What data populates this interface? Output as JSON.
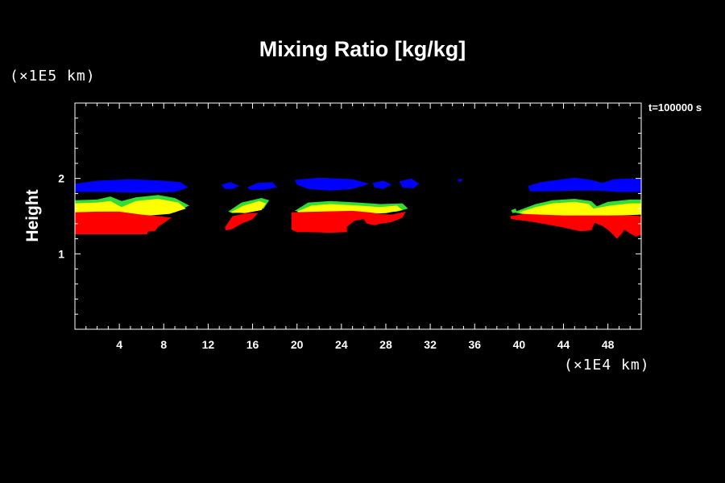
{
  "chart_data": {
    "type": "heatmap",
    "title": "Mixing Ratio [kg/kg]",
    "ylabel": "Height",
    "y_unit_label": "(×1E5 km)",
    "x_unit_label": "(×1E4 km)",
    "time_label": "t=100000 s",
    "xlim": [
      0,
      51
    ],
    "ylim": [
      0,
      3
    ],
    "x_ticks": [
      4,
      8,
      12,
      16,
      20,
      24,
      28,
      32,
      36,
      40,
      44,
      48
    ],
    "y_ticks": [
      1,
      2
    ],
    "colors": {
      "background": "#000000",
      "axes": "#ffffff",
      "level_1": "#ff0000",
      "level_2": "#ffff00",
      "level_3": "#33dd33",
      "level_4": "#0000ff"
    },
    "regions": [
      {
        "level": "level_4",
        "color": "#0000ff",
        "polygon": [
          [
            0,
            1.93
          ],
          [
            2,
            1.97
          ],
          [
            5,
            1.99
          ],
          [
            8,
            1.97
          ],
          [
            9.5,
            1.95
          ],
          [
            10.2,
            1.88
          ],
          [
            9,
            1.82
          ],
          [
            6,
            1.81
          ],
          [
            3,
            1.82
          ],
          [
            0,
            1.82
          ]
        ]
      },
      {
        "level": "level_4",
        "color": "#0000ff",
        "polygon": [
          [
            13.2,
            1.92
          ],
          [
            14,
            1.95
          ],
          [
            14.8,
            1.9
          ],
          [
            14.2,
            1.86
          ],
          [
            13.5,
            1.86
          ]
        ]
      },
      {
        "level": "level_4",
        "color": "#0000ff",
        "polygon": [
          [
            15.5,
            1.88
          ],
          [
            16.5,
            1.94
          ],
          [
            17.8,
            1.95
          ],
          [
            18.2,
            1.88
          ],
          [
            17,
            1.85
          ],
          [
            15.8,
            1.85
          ]
        ]
      },
      {
        "level": "level_4",
        "color": "#0000ff",
        "polygon": [
          [
            19.8,
            1.98
          ],
          [
            22,
            2.01
          ],
          [
            25,
            1.99
          ],
          [
            26.5,
            1.93
          ],
          [
            25,
            1.86
          ],
          [
            23,
            1.84
          ],
          [
            21,
            1.86
          ],
          [
            20,
            1.92
          ]
        ]
      },
      {
        "level": "level_4",
        "color": "#0000ff",
        "polygon": [
          [
            26.8,
            1.94
          ],
          [
            27.8,
            1.97
          ],
          [
            28.5,
            1.92
          ],
          [
            27.8,
            1.86
          ],
          [
            27,
            1.88
          ]
        ]
      },
      {
        "level": "level_4",
        "color": "#0000ff",
        "polygon": [
          [
            29.2,
            1.96
          ],
          [
            30.3,
            2.0
          ],
          [
            31,
            1.93
          ],
          [
            30.5,
            1.87
          ],
          [
            29.5,
            1.88
          ]
        ]
      },
      {
        "level": "level_4",
        "color": "#0000ff",
        "polygon": [
          [
            34.5,
            1.99
          ],
          [
            34.9,
            2.0
          ],
          [
            34.8,
            1.96
          ],
          [
            34.5,
            1.96
          ]
        ]
      },
      {
        "level": "level_4",
        "color": "#0000ff",
        "polygon": [
          [
            40.8,
            1.9
          ],
          [
            42,
            1.95
          ],
          [
            43.5,
            1.98
          ],
          [
            45,
            2.01
          ],
          [
            46.5,
            1.98
          ],
          [
            47.5,
            1.94
          ],
          [
            48.5,
            1.99
          ],
          [
            50,
            2.0
          ],
          [
            51,
            1.99
          ],
          [
            51,
            1.82
          ],
          [
            49,
            1.82
          ],
          [
            47,
            1.84
          ],
          [
            45,
            1.84
          ],
          [
            43,
            1.83
          ],
          [
            41,
            1.83
          ]
        ]
      },
      {
        "level": "level_3",
        "color": "#33dd33",
        "polygon": [
          [
            0,
            1.71
          ],
          [
            2,
            1.72
          ],
          [
            3.2,
            1.76
          ],
          [
            4.2,
            1.7
          ],
          [
            5.5,
            1.75
          ],
          [
            7.5,
            1.78
          ],
          [
            9,
            1.74
          ],
          [
            10.3,
            1.64
          ],
          [
            9,
            1.55
          ],
          [
            7,
            1.52
          ],
          [
            5,
            1.53
          ],
          [
            4,
            1.55
          ],
          [
            3,
            1.55
          ],
          [
            1,
            1.56
          ],
          [
            0,
            1.56
          ]
        ]
      },
      {
        "level": "level_3",
        "color": "#33dd33",
        "polygon": [
          [
            13.8,
            1.56
          ],
          [
            15,
            1.68
          ],
          [
            16.8,
            1.74
          ],
          [
            17.5,
            1.71
          ],
          [
            17,
            1.6
          ],
          [
            15.5,
            1.55
          ],
          [
            14.2,
            1.54
          ]
        ]
      },
      {
        "level": "level_3",
        "color": "#33dd33",
        "polygon": [
          [
            19.8,
            1.57
          ],
          [
            21,
            1.68
          ],
          [
            23,
            1.7
          ],
          [
            25.5,
            1.68
          ],
          [
            27.5,
            1.66
          ],
          [
            29.5,
            1.67
          ],
          [
            30,
            1.6
          ],
          [
            29,
            1.56
          ],
          [
            26,
            1.55
          ],
          [
            22,
            1.55
          ],
          [
            20.5,
            1.55
          ]
        ]
      },
      {
        "level": "level_3",
        "color": "#33dd33",
        "polygon": [
          [
            39.5,
            1.55
          ],
          [
            41.5,
            1.66
          ],
          [
            43,
            1.71
          ],
          [
            45,
            1.73
          ],
          [
            46.5,
            1.7
          ],
          [
            47,
            1.63
          ],
          [
            48,
            1.69
          ],
          [
            50,
            1.72
          ],
          [
            51,
            1.72
          ],
          [
            51,
            1.53
          ],
          [
            49,
            1.52
          ],
          [
            47,
            1.52
          ],
          [
            45,
            1.52
          ],
          [
            42,
            1.52
          ],
          [
            40.5,
            1.52
          ]
        ]
      },
      {
        "level": "level_3",
        "color": "#33dd33",
        "polygon": [
          [
            39.3,
            1.58
          ],
          [
            39.7,
            1.6
          ],
          [
            39.8,
            1.55
          ],
          [
            39.4,
            1.54
          ]
        ]
      },
      {
        "level": "level_2",
        "color": "#ffff00",
        "polygon": [
          [
            0,
            1.67
          ],
          [
            2,
            1.68
          ],
          [
            3.2,
            1.7
          ],
          [
            4.2,
            1.62
          ],
          [
            5.5,
            1.7
          ],
          [
            7.5,
            1.73
          ],
          [
            9.3,
            1.68
          ],
          [
            10,
            1.6
          ],
          [
            8.5,
            1.53
          ],
          [
            6,
            1.5
          ],
          [
            4.5,
            1.52
          ],
          [
            3.5,
            1.53
          ],
          [
            0,
            1.53
          ]
        ]
      },
      {
        "level": "level_2",
        "color": "#ffff00",
        "polygon": [
          [
            14,
            1.55
          ],
          [
            15.2,
            1.64
          ],
          [
            16.6,
            1.7
          ],
          [
            17.2,
            1.67
          ],
          [
            16.8,
            1.58
          ],
          [
            15.3,
            1.54
          ]
        ]
      },
      {
        "level": "level_2",
        "color": "#ffff00",
        "polygon": [
          [
            20,
            1.56
          ],
          [
            21.3,
            1.64
          ],
          [
            23,
            1.66
          ],
          [
            25.5,
            1.64
          ],
          [
            27.5,
            1.62
          ],
          [
            29,
            1.64
          ],
          [
            29.5,
            1.58
          ],
          [
            28,
            1.54
          ],
          [
            26,
            1.53
          ],
          [
            22,
            1.53
          ],
          [
            20.5,
            1.53
          ]
        ]
      },
      {
        "level": "level_2",
        "color": "#ffff00",
        "polygon": [
          [
            40,
            1.55
          ],
          [
            41.5,
            1.62
          ],
          [
            43,
            1.67
          ],
          [
            45,
            1.69
          ],
          [
            46.3,
            1.66
          ],
          [
            46.7,
            1.6
          ],
          [
            48.2,
            1.64
          ],
          [
            50,
            1.67
          ],
          [
            51,
            1.67
          ],
          [
            51,
            1.52
          ],
          [
            49,
            1.51
          ],
          [
            47,
            1.5
          ],
          [
            44,
            1.5
          ],
          [
            41,
            1.51
          ]
        ]
      },
      {
        "level": "level_1",
        "color": "#ff0000",
        "polygon": [
          [
            0,
            1.55
          ],
          [
            2,
            1.56
          ],
          [
            4,
            1.56
          ],
          [
            6,
            1.52
          ],
          [
            7.5,
            1.5
          ],
          [
            8.7,
            1.48
          ],
          [
            8.2,
            1.43
          ],
          [
            7.5,
            1.36
          ],
          [
            7.2,
            1.3
          ],
          [
            6.6,
            1.3
          ],
          [
            6.5,
            1.26
          ],
          [
            0,
            1.26
          ]
        ]
      },
      {
        "level": "level_1",
        "color": "#ff0000",
        "polygon": [
          [
            13.5,
            1.35
          ],
          [
            14.2,
            1.5
          ],
          [
            15.5,
            1.54
          ],
          [
            16.5,
            1.54
          ],
          [
            16,
            1.46
          ],
          [
            15,
            1.4
          ],
          [
            14.2,
            1.33
          ],
          [
            13.6,
            1.31
          ]
        ]
      },
      {
        "level": "level_1",
        "color": "#ff0000",
        "polygon": [
          [
            19.5,
            1.55
          ],
          [
            22,
            1.56
          ],
          [
            25,
            1.57
          ],
          [
            26.5,
            1.55
          ],
          [
            27.5,
            1.53
          ],
          [
            28.5,
            1.52
          ],
          [
            29.8,
            1.56
          ],
          [
            29.5,
            1.48
          ],
          [
            28.5,
            1.42
          ],
          [
            27.5,
            1.4
          ],
          [
            27,
            1.38
          ],
          [
            26.3,
            1.4
          ],
          [
            26,
            1.46
          ],
          [
            25.2,
            1.44
          ],
          [
            24.5,
            1.36
          ],
          [
            24.5,
            1.29
          ],
          [
            23,
            1.28
          ],
          [
            21,
            1.29
          ],
          [
            20,
            1.29
          ],
          [
            19.5,
            1.32
          ]
        ]
      },
      {
        "level": "level_1",
        "color": "#ff0000",
        "polygon": [
          [
            39.2,
            1.5
          ],
          [
            40.5,
            1.53
          ],
          [
            42,
            1.52
          ],
          [
            44,
            1.51
          ],
          [
            46,
            1.51
          ],
          [
            48,
            1.51
          ],
          [
            50,
            1.51
          ],
          [
            51,
            1.5
          ],
          [
            51,
            1.25
          ],
          [
            50.5,
            1.23
          ],
          [
            50,
            1.27
          ],
          [
            49.5,
            1.32
          ],
          [
            49.2,
            1.26
          ],
          [
            48.8,
            1.2
          ],
          [
            48.5,
            1.25
          ],
          [
            48,
            1.32
          ],
          [
            47.5,
            1.37
          ],
          [
            46.8,
            1.41
          ],
          [
            46.5,
            1.31
          ],
          [
            45.5,
            1.3
          ],
          [
            44,
            1.35
          ],
          [
            42.5,
            1.39
          ],
          [
            41,
            1.43
          ],
          [
            39.3,
            1.46
          ]
        ]
      }
    ]
  }
}
